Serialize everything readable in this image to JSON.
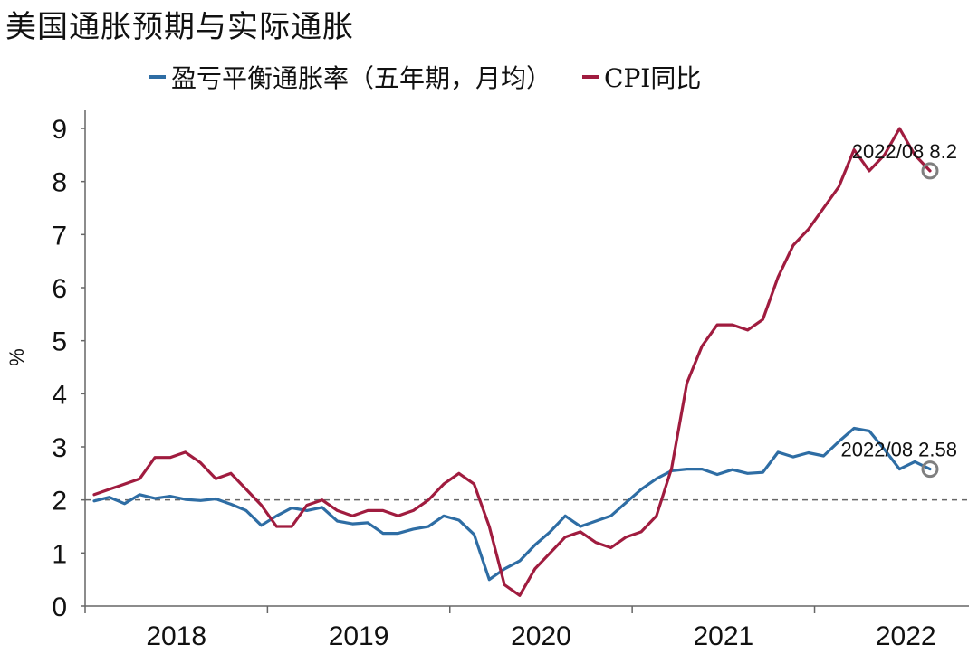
{
  "title": "美国通胀预期与实际通胀",
  "colors": {
    "breakeven": "#2E6DA4",
    "cpi": "#A01C3F",
    "reference": "#666666",
    "axis": "#666666",
    "marker": "#7f7f7f"
  },
  "legend": [
    {
      "label": "盈亏平衡通胀率（五年期，月均）",
      "color": "#2E6DA4"
    },
    {
      "label": "CPI同比",
      "color": "#A01C3F"
    }
  ],
  "chart_data": {
    "type": "line",
    "title": "美国通胀预期与实际通胀",
    "xlabel": "",
    "ylabel": "%",
    "ylim": [
      0,
      9
    ],
    "yticks": [
      "0",
      "1",
      "2",
      "3",
      "4",
      "5",
      "6",
      "7",
      "8",
      "9"
    ],
    "x_axis_labels": [
      "2018",
      "2019",
      "2020",
      "2021",
      "2022"
    ],
    "x": [
      "2018/01",
      "2018/02",
      "2018/03",
      "2018/04",
      "2018/05",
      "2018/06",
      "2018/07",
      "2018/08",
      "2018/09",
      "2018/10",
      "2018/11",
      "2018/12",
      "2019/01",
      "2019/02",
      "2019/03",
      "2019/04",
      "2019/05",
      "2019/06",
      "2019/07",
      "2019/08",
      "2019/09",
      "2019/10",
      "2019/11",
      "2019/12",
      "2020/01",
      "2020/02",
      "2020/03",
      "2020/04",
      "2020/05",
      "2020/06",
      "2020/07",
      "2020/08",
      "2020/09",
      "2020/10",
      "2020/11",
      "2020/12",
      "2021/01",
      "2021/02",
      "2021/03",
      "2021/04",
      "2021/05",
      "2021/06",
      "2021/07",
      "2021/08",
      "2021/09",
      "2021/10",
      "2021/11",
      "2021/12",
      "2022/01",
      "2022/02",
      "2022/03",
      "2022/04",
      "2022/05",
      "2022/06",
      "2022/07",
      "2022/08"
    ],
    "reference_line": 2,
    "grid": false,
    "legend_position": "top",
    "series": [
      {
        "name": "盈亏平衡通胀率（五年期，月均）",
        "values": [
          1.98,
          2.05,
          1.93,
          2.1,
          2.03,
          2.07,
          2.01,
          1.99,
          2.02,
          1.92,
          1.8,
          1.52,
          1.7,
          1.85,
          1.8,
          1.86,
          1.6,
          1.55,
          1.57,
          1.37,
          1.37,
          1.45,
          1.5,
          1.7,
          1.62,
          1.35,
          0.5,
          0.7,
          0.85,
          1.15,
          1.4,
          1.7,
          1.5,
          1.6,
          1.7,
          1.95,
          2.2,
          2.4,
          2.55,
          2.58,
          2.58,
          2.48,
          2.57,
          2.5,
          2.52,
          2.9,
          2.81,
          2.89,
          2.83,
          3.1,
          3.35,
          3.3,
          2.95,
          2.58,
          2.72,
          2.58
        ]
      },
      {
        "name": "CPI同比",
        "values": [
          2.1,
          2.2,
          2.3,
          2.4,
          2.8,
          2.8,
          2.9,
          2.7,
          2.4,
          2.5,
          2.2,
          1.9,
          1.5,
          1.5,
          1.9,
          2.0,
          1.8,
          1.7,
          1.8,
          1.8,
          1.7,
          1.8,
          2.0,
          2.3,
          2.5,
          2.3,
          1.5,
          0.4,
          0.2,
          0.7,
          1.0,
          1.3,
          1.4,
          1.2,
          1.1,
          1.3,
          1.4,
          1.7,
          2.6,
          4.2,
          4.9,
          5.3,
          5.3,
          5.2,
          5.4,
          6.2,
          6.8,
          7.1,
          7.5,
          7.9,
          8.6,
          8.2,
          8.5,
          9.0,
          8.5,
          8.2
        ]
      }
    ],
    "annotations": [
      {
        "text": "2022/08 8.2",
        "series": 1,
        "index": 55
      },
      {
        "text": "2022/08 2.58",
        "series": 0,
        "index": 55
      }
    ]
  }
}
